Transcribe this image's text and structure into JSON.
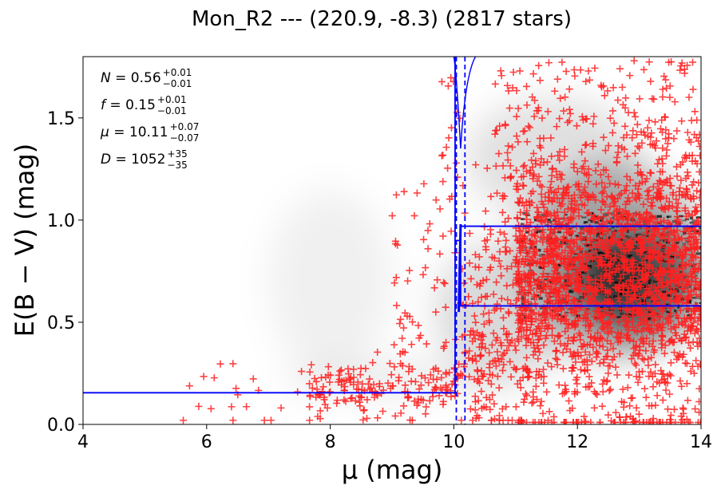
{
  "chart_data": {
    "type": "scatter",
    "title": "Mon_R2 --- (220.9, -8.3) (2817 stars)",
    "xlabel": "μ (mag)",
    "ylabel": "E(B − V) (mag)",
    "xlim": [
      4,
      14
    ],
    "ylim": [
      0,
      1.8
    ],
    "x_ticks": [
      4,
      6,
      8,
      10,
      12,
      14
    ],
    "y_ticks": [
      0.0,
      0.5,
      1.0,
      1.5
    ],
    "x_tick_labels": [
      "4",
      "6",
      "8",
      "10",
      "12",
      "14"
    ],
    "y_tick_labels": [
      "0.0",
      "0.5",
      "1.0",
      "1.5"
    ],
    "grid": false,
    "annotations": [
      {
        "symbol": "N",
        "value": "0.56",
        "plus": "+0.01",
        "minus": "−0.01"
      },
      {
        "symbol": "f",
        "value": "0.15",
        "plus": "+0.01",
        "minus": "−0.01"
      },
      {
        "symbol": "μ",
        "value": "10.11",
        "plus": "+0.07",
        "minus": "−0.07"
      },
      {
        "symbol": "D",
        "value": "1052",
        "plus": "+35",
        "minus": "−35"
      }
    ],
    "fit": {
      "distance_modulus": 10.11,
      "distance_modulus_lower": 10.04,
      "distance_modulus_upper": 10.18,
      "foreground_extinction": 0.155,
      "background_extinction": 0.775,
      "background_band": [
        0.58,
        0.97
      ]
    },
    "colors": {
      "points": "#ff2020",
      "model": "#0000ff",
      "background_density": "#000000"
    }
  }
}
